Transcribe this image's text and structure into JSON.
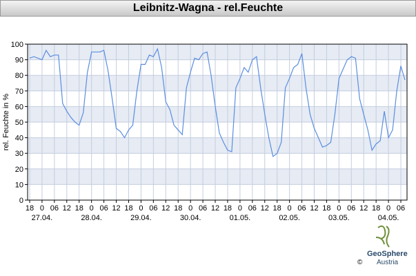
{
  "chart_data": {
    "type": "line",
    "title": "Leibnitz-Wagna - rel.Feuchte",
    "y_label": "rel. Feuchte in %",
    "x": [
      "26.04. 18",
      "26.04. 20",
      "26.04. 22",
      "27.04. 00",
      "27.04. 02",
      "27.04. 04",
      "27.04. 06",
      "27.04. 08",
      "27.04. 10",
      "27.04. 12",
      "27.04. 14",
      "27.04. 16",
      "27.04. 18",
      "27.04. 20",
      "27.04. 22",
      "28.04. 00",
      "28.04. 02",
      "28.04. 04",
      "28.04. 06",
      "28.04. 08",
      "28.04. 10",
      "28.04. 12",
      "28.04. 14",
      "28.04. 16",
      "28.04. 18",
      "28.04. 20",
      "28.04. 22",
      "29.04. 00",
      "29.04. 02",
      "29.04. 04",
      "29.04. 06",
      "29.04. 08",
      "29.04. 10",
      "29.04. 12",
      "29.04. 14",
      "29.04. 16",
      "29.04. 18",
      "29.04. 20",
      "29.04. 22",
      "30.04. 00",
      "30.04. 02",
      "30.04. 04",
      "30.04. 06",
      "30.04. 08",
      "30.04. 10",
      "30.04. 12",
      "30.04. 14",
      "30.04. 16",
      "30.04. 18",
      "30.04. 20",
      "30.04. 22",
      "01.05. 00",
      "01.05. 02",
      "01.05. 04",
      "01.05. 06",
      "01.05. 08",
      "01.05. 10",
      "01.05. 12",
      "01.05. 14",
      "01.05. 16",
      "01.05. 18",
      "01.05. 20",
      "01.05. 22",
      "02.05. 00",
      "02.05. 02",
      "02.05. 04",
      "02.05. 06",
      "02.05. 08",
      "02.05. 10",
      "02.05. 12",
      "02.05. 14",
      "02.05. 16",
      "02.05. 18",
      "02.05. 20",
      "02.05. 22",
      "03.05. 00",
      "03.05. 02",
      "03.05. 04",
      "03.05. 06",
      "03.05. 08",
      "03.05. 10",
      "03.05. 12",
      "03.05. 14",
      "03.05. 16",
      "03.05. 18",
      "03.05. 20",
      "03.05. 22",
      "04.05. 00",
      "04.05. 02",
      "04.05. 04",
      "04.05. 06",
      "04.05. 08"
    ],
    "series": [
      {
        "name": "rel. Feuchte",
        "color": "#5b8ee0",
        "values": [
          91,
          92,
          91,
          90,
          96,
          92,
          93,
          93,
          62,
          57,
          53,
          50,
          48,
          56,
          82,
          95,
          95,
          95,
          96,
          83,
          65,
          46,
          44,
          40,
          45,
          48,
          70,
          87,
          87,
          93,
          92,
          97,
          85,
          63,
          58,
          48,
          45,
          42,
          72,
          82,
          91,
          90,
          94,
          95,
          80,
          60,
          43,
          37,
          32,
          31,
          72,
          78,
          85,
          82,
          90,
          92,
          72,
          55,
          40,
          28,
          30,
          37,
          72,
          78,
          85,
          87,
          94,
          72,
          55,
          46,
          40,
          34,
          35,
          37,
          55,
          78,
          84,
          90,
          92,
          91,
          65,
          55,
          45,
          32,
          36,
          38,
          57,
          40,
          45,
          70,
          86,
          77
        ]
      }
    ],
    "xlim": [
      "26.04. 17",
      "04.05. 09"
    ],
    "xticks": [
      {
        "value": "26.04. 18",
        "label": "18"
      },
      {
        "value": "27.04. 00",
        "label": "0"
      },
      {
        "value": "27.04. 06",
        "label": "06"
      },
      {
        "value": "27.04. 12",
        "label": "12"
      },
      {
        "value": "27.04. 18",
        "label": "18"
      },
      {
        "value": "28.04. 00",
        "label": "0"
      },
      {
        "value": "28.04. 06",
        "label": "06"
      },
      {
        "value": "28.04. 12",
        "label": "12"
      },
      {
        "value": "28.04. 18",
        "label": "18"
      },
      {
        "value": "29.04. 00",
        "label": "0"
      },
      {
        "value": "29.04. 06",
        "label": "06"
      },
      {
        "value": "29.04. 12",
        "label": "12"
      },
      {
        "value": "29.04. 18",
        "label": "18"
      },
      {
        "value": "30.04. 00",
        "label": "0"
      },
      {
        "value": "30.04. 06",
        "label": "06"
      },
      {
        "value": "30.04. 12",
        "label": "12"
      },
      {
        "value": "30.04. 18",
        "label": "18"
      },
      {
        "value": "01.05. 00",
        "label": "0"
      },
      {
        "value": "01.05. 06",
        "label": "06"
      },
      {
        "value": "01.05. 12",
        "label": "12"
      },
      {
        "value": "01.05. 18",
        "label": "18"
      },
      {
        "value": "02.05. 00",
        "label": "0"
      },
      {
        "value": "02.05. 06",
        "label": "06"
      },
      {
        "value": "02.05. 12",
        "label": "12"
      },
      {
        "value": "02.05. 18",
        "label": "18"
      },
      {
        "value": "03.05. 00",
        "label": "0"
      },
      {
        "value": "03.05. 06",
        "label": "06"
      },
      {
        "value": "03.05. 12",
        "label": "12"
      },
      {
        "value": "03.05. 18",
        "label": "18"
      },
      {
        "value": "04.05. 00",
        "label": "0"
      },
      {
        "value": "04.05. 06",
        "label": "06"
      }
    ],
    "xdates": [
      {
        "value": "27.04. 00",
        "label": "27.04."
      },
      {
        "value": "28.04. 00",
        "label": "28.04."
      },
      {
        "value": "29.04. 00",
        "label": "29.04."
      },
      {
        "value": "30.04. 00",
        "label": "30.04."
      },
      {
        "value": "01.05. 00",
        "label": "01.05."
      },
      {
        "value": "02.05. 00",
        "label": "02.05."
      },
      {
        "value": "03.05. 00",
        "label": "03.05."
      },
      {
        "value": "04.05. 00",
        "label": "04.05."
      }
    ],
    "ylim": [
      0,
      100
    ],
    "yticks": [
      0,
      10,
      20,
      30,
      40,
      50,
      60,
      70,
      80,
      90,
      100
    ],
    "grid": true,
    "bands": true,
    "band_color": "#e6ebf4"
  },
  "logo": {
    "name": "GeoSphere",
    "sub": "Austria",
    "copyright": "©"
  }
}
